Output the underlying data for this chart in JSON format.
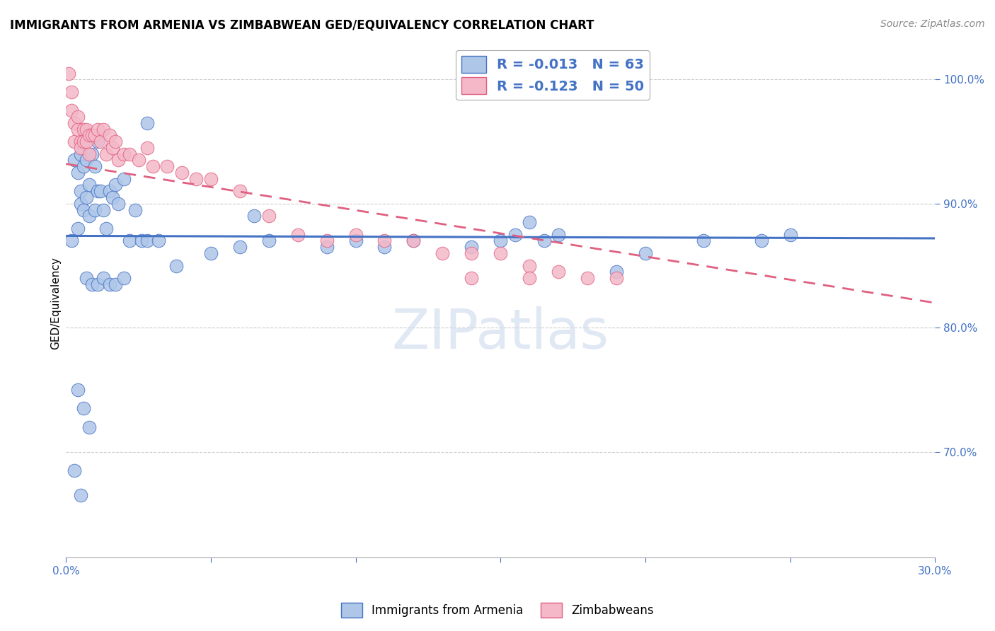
{
  "title": "IMMIGRANTS FROM ARMENIA VS ZIMBABWEAN GED/EQUIVALENCY CORRELATION CHART",
  "source": "Source: ZipAtlas.com",
  "ylabel": "GED/Equivalency",
  "xlim": [
    0.0,
    0.3
  ],
  "ylim": [
    0.615,
    1.025
  ],
  "watermark": "ZIPatlas",
  "blue_color": "#aec6e8",
  "pink_color": "#f4b8c8",
  "blue_line_color": "#4472c4",
  "pink_line_color": "#e06080",
  "blue_line_y0": 0.874,
  "blue_line_y1": 0.872,
  "pink_line_y0": 0.932,
  "pink_line_y1": 0.82,
  "armenia_x": [
    0.002,
    0.003,
    0.004,
    0.004,
    0.005,
    0.005,
    0.005,
    0.006,
    0.006,
    0.007,
    0.007,
    0.008,
    0.008,
    0.009,
    0.01,
    0.01,
    0.011,
    0.011,
    0.012,
    0.013,
    0.014,
    0.015,
    0.016,
    0.017,
    0.018,
    0.02,
    0.022,
    0.024,
    0.026,
    0.028,
    0.032,
    0.038,
    0.05,
    0.06,
    0.065,
    0.07,
    0.09,
    0.1,
    0.11,
    0.12,
    0.14,
    0.15,
    0.155,
    0.16,
    0.165,
    0.17,
    0.19,
    0.2,
    0.22,
    0.24,
    0.25,
    0.004,
    0.006,
    0.008,
    0.003,
    0.005,
    0.007,
    0.009,
    0.011,
    0.013,
    0.015,
    0.017,
    0.02,
    0.028
  ],
  "armenia_y": [
    0.87,
    0.935,
    0.88,
    0.925,
    0.9,
    0.94,
    0.91,
    0.895,
    0.93,
    0.905,
    0.935,
    0.89,
    0.915,
    0.94,
    0.895,
    0.93,
    0.91,
    0.95,
    0.91,
    0.895,
    0.88,
    0.91,
    0.905,
    0.915,
    0.9,
    0.92,
    0.87,
    0.895,
    0.87,
    0.87,
    0.87,
    0.85,
    0.86,
    0.865,
    0.89,
    0.87,
    0.865,
    0.87,
    0.865,
    0.87,
    0.865,
    0.87,
    0.875,
    0.885,
    0.87,
    0.875,
    0.845,
    0.86,
    0.87,
    0.87,
    0.875,
    0.75,
    0.735,
    0.72,
    0.685,
    0.665,
    0.84,
    0.835,
    0.835,
    0.84,
    0.835,
    0.835,
    0.84,
    0.965
  ],
  "zimbabwe_x": [
    0.001,
    0.002,
    0.002,
    0.003,
    0.003,
    0.004,
    0.004,
    0.005,
    0.005,
    0.006,
    0.006,
    0.007,
    0.007,
    0.008,
    0.008,
    0.009,
    0.01,
    0.011,
    0.012,
    0.013,
    0.014,
    0.015,
    0.016,
    0.017,
    0.018,
    0.02,
    0.022,
    0.025,
    0.028,
    0.03,
    0.035,
    0.04,
    0.045,
    0.05,
    0.06,
    0.07,
    0.08,
    0.09,
    0.1,
    0.11,
    0.12,
    0.13,
    0.14,
    0.15,
    0.16,
    0.17,
    0.18,
    0.19,
    0.14,
    0.16
  ],
  "zimbabwe_y": [
    1.005,
    0.99,
    0.975,
    0.965,
    0.95,
    0.96,
    0.97,
    0.95,
    0.945,
    0.96,
    0.95,
    0.96,
    0.95,
    0.955,
    0.94,
    0.955,
    0.955,
    0.96,
    0.95,
    0.96,
    0.94,
    0.955,
    0.945,
    0.95,
    0.935,
    0.94,
    0.94,
    0.935,
    0.945,
    0.93,
    0.93,
    0.925,
    0.92,
    0.92,
    0.91,
    0.89,
    0.875,
    0.87,
    0.875,
    0.87,
    0.87,
    0.86,
    0.86,
    0.86,
    0.85,
    0.845,
    0.84,
    0.84,
    0.84,
    0.84
  ]
}
